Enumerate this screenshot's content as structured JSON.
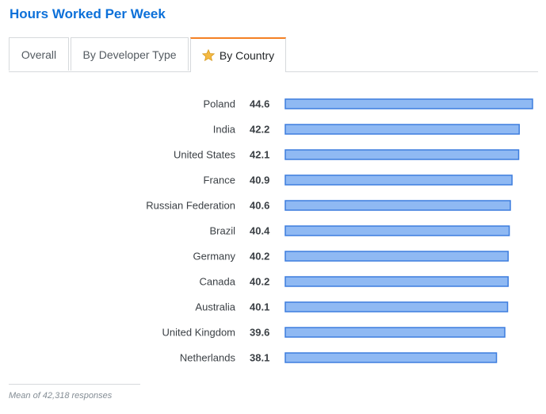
{
  "title": "Hours Worked Per Week",
  "tabs": [
    {
      "label": "Overall",
      "active": false
    },
    {
      "label": "By Developer Type",
      "active": false
    },
    {
      "label": "By Country",
      "active": true,
      "icon": "star-icon"
    }
  ],
  "colors": {
    "bar_fill": "#8FB9F3",
    "bar_stroke": "#3D7DDE",
    "title": "#0C70D9",
    "active_tab_accent": "#F48024"
  },
  "chart_data": {
    "type": "bar",
    "orientation": "horizontal",
    "categories": [
      "Poland",
      "India",
      "United States",
      "France",
      "Russian Federation",
      "Brazil",
      "Germany",
      "Canada",
      "Australia",
      "United Kingdom",
      "Netherlands"
    ],
    "values": [
      44.6,
      42.2,
      42.1,
      40.9,
      40.6,
      40.4,
      40.2,
      40.2,
      40.1,
      39.6,
      38.1
    ],
    "value_labels": [
      "44.6",
      "42.2",
      "42.1",
      "40.9",
      "40.6",
      "40.4",
      "40.2",
      "40.2",
      "40.1",
      "39.6",
      "38.1"
    ],
    "title": "",
    "xlabel": "",
    "ylabel": "",
    "grid": false,
    "legend": "none"
  },
  "footnote": "Mean of 42,318 responses"
}
